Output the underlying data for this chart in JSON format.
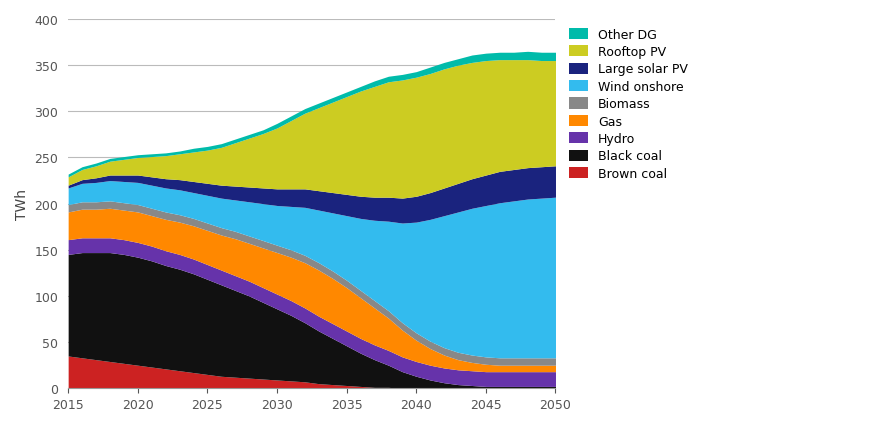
{
  "years": [
    2015,
    2016,
    2017,
    2018,
    2019,
    2020,
    2021,
    2022,
    2023,
    2024,
    2025,
    2026,
    2027,
    2028,
    2029,
    2030,
    2031,
    2032,
    2033,
    2034,
    2035,
    2036,
    2037,
    2038,
    2039,
    2040,
    2041,
    2042,
    2043,
    2044,
    2045,
    2046,
    2047,
    2048,
    2049,
    2050
  ],
  "series": {
    "Brown coal": [
      35,
      33,
      31,
      29,
      27,
      25,
      23,
      21,
      19,
      17,
      15,
      13,
      12,
      11,
      10,
      9,
      8,
      7,
      5,
      4,
      3,
      2,
      1,
      1,
      0,
      0,
      0,
      0,
      0,
      0,
      0,
      0,
      0,
      0,
      0,
      0
    ],
    "Black coal": [
      110,
      114,
      116,
      118,
      118,
      117,
      115,
      112,
      110,
      107,
      103,
      99,
      94,
      89,
      83,
      77,
      71,
      64,
      57,
      50,
      43,
      36,
      30,
      24,
      18,
      13,
      9,
      6,
      4,
      3,
      2,
      2,
      2,
      2,
      2,
      2
    ],
    "Hydro": [
      16,
      16,
      16,
      16,
      16,
      16,
      16,
      16,
      16,
      16,
      16,
      16,
      16,
      16,
      16,
      16,
      16,
      16,
      16,
      16,
      16,
      16,
      16,
      16,
      16,
      16,
      16,
      16,
      16,
      16,
      16,
      16,
      16,
      16,
      16,
      16
    ],
    "Gas": [
      30,
      31,
      31,
      32,
      32,
      33,
      33,
      34,
      35,
      36,
      37,
      38,
      40,
      41,
      43,
      45,
      47,
      49,
      50,
      49,
      47,
      44,
      40,
      35,
      29,
      23,
      18,
      14,
      11,
      9,
      8,
      7,
      7,
      7,
      7,
      7
    ],
    "Biomass": [
      8,
      8,
      8,
      8,
      8,
      8,
      8,
      8,
      8,
      8,
      8,
      8,
      8,
      8,
      8,
      8,
      8,
      8,
      8,
      8,
      8,
      8,
      8,
      8,
      8,
      8,
      8,
      8,
      8,
      8,
      8,
      8,
      8,
      8,
      8,
      8
    ],
    "Wind onshore": [
      18,
      20,
      21,
      22,
      23,
      24,
      25,
      26,
      27,
      28,
      30,
      32,
      34,
      37,
      40,
      43,
      47,
      52,
      57,
      63,
      70,
      78,
      87,
      97,
      108,
      120,
      132,
      143,
      152,
      159,
      164,
      168,
      170,
      172,
      173,
      174
    ],
    "Large solar PV": [
      3,
      4,
      5,
      6,
      7,
      8,
      9,
      10,
      11,
      12,
      13,
      14,
      15,
      16,
      17,
      18,
      19,
      20,
      21,
      22,
      23,
      24,
      25,
      26,
      27,
      28,
      29,
      30,
      31,
      32,
      33,
      34,
      34,
      34,
      34,
      34
    ],
    "Rooftop PV": [
      9,
      11,
      13,
      15,
      17,
      19,
      22,
      25,
      28,
      32,
      36,
      41,
      47,
      53,
      59,
      66,
      74,
      82,
      90,
      98,
      106,
      114,
      120,
      125,
      128,
      129,
      129,
      129,
      128,
      126,
      124,
      121,
      119,
      117,
      115,
      114
    ],
    "Other DG": [
      3,
      3,
      3,
      3,
      3,
      3,
      3,
      3,
      3,
      4,
      4,
      4,
      4,
      4,
      4,
      5,
      5,
      5,
      5,
      5,
      5,
      5,
      6,
      6,
      6,
      6,
      7,
      7,
      7,
      8,
      8,
      8,
      8,
      9,
      9,
      9
    ]
  },
  "colors": {
    "Brown coal": "#cc2222",
    "Black coal": "#111111",
    "Hydro": "#6633aa",
    "Gas": "#ff8800",
    "Biomass": "#888888",
    "Wind onshore": "#33bbee",
    "Large solar PV": "#1a237e",
    "Rooftop PV": "#cccc22",
    "Other DG": "#00bbaa"
  },
  "series_order": [
    "Brown coal",
    "Black coal",
    "Hydro",
    "Gas",
    "Biomass",
    "Wind onshore",
    "Large solar PV",
    "Rooftop PV",
    "Other DG"
  ],
  "legend_order": [
    "Other DG",
    "Rooftop PV",
    "Large solar PV",
    "Wind onshore",
    "Biomass",
    "Gas",
    "Hydro",
    "Black coal",
    "Brown coal"
  ],
  "ylabel": "TWh",
  "ylim": [
    0,
    400
  ],
  "yticks": [
    0,
    50,
    100,
    150,
    200,
    250,
    300,
    350,
    400
  ],
  "xlim": [
    2015,
    2050
  ],
  "xticks": [
    2015,
    2020,
    2025,
    2030,
    2035,
    2040,
    2045,
    2050
  ],
  "grid_color": "#bbbbbb",
  "background_color": "#ffffff"
}
